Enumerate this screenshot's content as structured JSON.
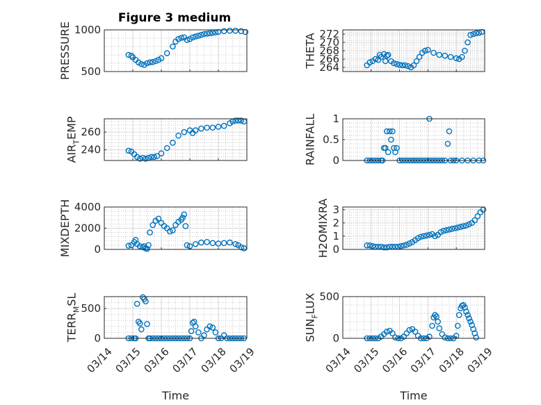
{
  "title": "Figure 3 medium",
  "colors": {
    "marker": "#0072BD",
    "axis": "#262626",
    "grid": "#b0b0b0"
  },
  "x_ticks": [
    "03/14",
    "03/15",
    "03/16",
    "03/17",
    "03/18",
    "03/19"
  ],
  "x_label": "Time",
  "chart_data": [
    {
      "type": "scatter",
      "ylabel": "PRESSURE",
      "ylim": [
        500,
        1000
      ],
      "yticks": [
        "500",
        "1000"
      ],
      "ytick_values": [
        500,
        1000
      ],
      "x": [
        0.85,
        0.95,
        1.0,
        1.1,
        1.2,
        1.3,
        1.4,
        1.5,
        1.6,
        1.7,
        1.8,
        1.9,
        2.0,
        2.2,
        2.4,
        2.5,
        2.6,
        2.7,
        2.8,
        2.9,
        3.0,
        3.1,
        3.2,
        3.3,
        3.4,
        3.5,
        3.6,
        3.7,
        3.8,
        3.9,
        4.0,
        4.2,
        4.4,
        4.6,
        4.8,
        4.95
      ],
      "y": [
        700,
        690,
        670,
        640,
        610,
        590,
        580,
        600,
        610,
        615,
        625,
        640,
        660,
        720,
        800,
        860,
        890,
        905,
        910,
        880,
        890,
        910,
        920,
        930,
        940,
        950,
        955,
        960,
        965,
        970,
        975,
        985,
        990,
        990,
        985,
        975
      ]
    },
    {
      "type": "scatter",
      "ylabel": "THETA",
      "ylim": [
        263,
        273
      ],
      "yticks": [
        "264",
        "266",
        "268",
        "270",
        "272"
      ],
      "ytick_values": [
        264,
        266,
        268,
        270,
        272
      ],
      "x": [
        0.85,
        0.95,
        1.05,
        1.15,
        1.25,
        1.3,
        1.35,
        1.45,
        1.5,
        1.55,
        1.6,
        1.7,
        1.8,
        1.9,
        2.0,
        2.1,
        2.2,
        2.3,
        2.4,
        2.5,
        2.6,
        2.7,
        2.8,
        2.9,
        3.0,
        3.2,
        3.4,
        3.6,
        3.8,
        4.0,
        4.1,
        4.2,
        4.3,
        4.4,
        4.5,
        4.6,
        4.7,
        4.8,
        4.9
      ],
      "y": [
        264.5,
        265.2,
        265.5,
        266,
        265.8,
        267,
        266.5,
        267.2,
        265.5,
        266.8,
        267,
        265.5,
        265,
        264.8,
        264.6,
        264.5,
        264.5,
        264.3,
        264,
        264.5,
        265.5,
        266.5,
        267.5,
        268,
        268.2,
        267.5,
        267,
        266.8,
        266.5,
        266.2,
        266,
        266.5,
        268,
        270,
        271.8,
        272,
        272.2,
        272.3,
        272.5
      ]
    },
    {
      "type": "scatter",
      "ylabel": "AIR_TEMP",
      "ylim": [
        228,
        275
      ],
      "yticks": [
        "240",
        "260"
      ],
      "ytick_values": [
        240,
        260
      ],
      "x": [
        0.85,
        0.95,
        1.05,
        1.15,
        1.25,
        1.35,
        1.45,
        1.55,
        1.65,
        1.75,
        1.85,
        2.0,
        2.2,
        2.4,
        2.6,
        2.8,
        3.0,
        3.1,
        3.2,
        3.4,
        3.6,
        3.8,
        4.0,
        4.2,
        4.4,
        4.5,
        4.6,
        4.7,
        4.8,
        4.9
      ],
      "y": [
        239,
        238,
        235,
        232,
        230,
        231,
        230,
        231,
        232,
        232,
        233,
        236,
        242,
        248,
        256,
        260,
        262,
        259,
        262,
        264,
        265,
        265,
        266,
        267,
        270,
        272,
        273,
        273,
        273,
        272
      ]
    },
    {
      "type": "scatter",
      "ylabel": "RAINFALL",
      "ylim": [
        0,
        1
      ],
      "yticks": [
        "0",
        "0.5",
        "1"
      ],
      "ytick_values": [
        0,
        0.5,
        1
      ],
      "x": [
        0.85,
        0.95,
        1.05,
        1.15,
        1.25,
        1.35,
        1.4,
        1.45,
        1.5,
        1.55,
        1.6,
        1.65,
        1.7,
        1.75,
        1.8,
        1.85,
        1.9,
        2.0,
        2.1,
        2.2,
        2.3,
        2.4,
        2.5,
        2.6,
        2.7,
        2.8,
        2.9,
        3.0,
        3.05,
        3.1,
        3.2,
        3.3,
        3.4,
        3.5,
        3.6,
        3.7,
        3.75,
        3.8,
        3.9,
        4.0,
        4.2,
        4.4,
        4.6,
        4.8,
        4.95
      ],
      "y": [
        0,
        0,
        0,
        0,
        0,
        0,
        0,
        0.3,
        0.3,
        0.7,
        0.2,
        0.7,
        0.5,
        0.7,
        0.3,
        0.2,
        0.3,
        0,
        0,
        0,
        0,
        0,
        0,
        0,
        0,
        0,
        0,
        0,
        1,
        0,
        0,
        0,
        0,
        0,
        0,
        0.4,
        0.7,
        0,
        0,
        0,
        0,
        0,
        0,
        0,
        0
      ]
    },
    {
      "type": "scatter",
      "ylabel": "MIXDEPTH",
      "ylim": [
        0,
        4000
      ],
      "yticks": [
        "0",
        "2000",
        "4000"
      ],
      "ytick_values": [
        0,
        2000,
        4000
      ],
      "x": [
        0.85,
        0.95,
        1.05,
        1.1,
        1.15,
        1.25,
        1.35,
        1.4,
        1.45,
        1.5,
        1.55,
        1.6,
        1.7,
        1.8,
        1.9,
        2.0,
        2.1,
        2.2,
        2.3,
        2.4,
        2.5,
        2.6,
        2.7,
        2.75,
        2.8,
        2.85,
        2.9,
        3.0,
        3.2,
        3.4,
        3.6,
        3.8,
        4.0,
        4.2,
        4.4,
        4.6,
        4.7,
        4.8,
        4.9
      ],
      "y": [
        350,
        400,
        700,
        900,
        500,
        300,
        200,
        300,
        100,
        50,
        400,
        1600,
        2300,
        2700,
        2900,
        2500,
        2200,
        2000,
        1700,
        1800,
        2300,
        2600,
        2800,
        3000,
        3300,
        2200,
        400,
        300,
        500,
        650,
        700,
        600,
        550,
        600,
        650,
        500,
        400,
        200,
        100
      ]
    },
    {
      "type": "scatter",
      "ylabel": "H2OMIXRA",
      "ylim": [
        0,
        3.2
      ],
      "yticks": [
        "0",
        "1",
        "2",
        "3"
      ],
      "ytick_values": [
        0,
        1,
        2,
        3
      ],
      "x": [
        0.85,
        0.95,
        1.05,
        1.15,
        1.25,
        1.35,
        1.45,
        1.55,
        1.65,
        1.75,
        1.85,
        1.95,
        2.05,
        2.15,
        2.25,
        2.35,
        2.45,
        2.55,
        2.65,
        2.75,
        2.85,
        2.95,
        3.05,
        3.15,
        3.25,
        3.35,
        3.45,
        3.55,
        3.65,
        3.75,
        3.85,
        3.95,
        4.05,
        4.15,
        4.25,
        4.35,
        4.45,
        4.55,
        4.65,
        4.75,
        4.85,
        4.95
      ],
      "y": [
        0.3,
        0.3,
        0.25,
        0.2,
        0.2,
        0.2,
        0.15,
        0.15,
        0.2,
        0.2,
        0.2,
        0.2,
        0.25,
        0.3,
        0.35,
        0.45,
        0.55,
        0.7,
        0.85,
        0.95,
        1.0,
        1.05,
        1.1,
        1.15,
        1.0,
        1.1,
        1.3,
        1.4,
        1.45,
        1.5,
        1.55,
        1.6,
        1.65,
        1.7,
        1.75,
        1.8,
        1.9,
        2.0,
        2.2,
        2.5,
        2.8,
        3.0
      ]
    },
    {
      "type": "scatter",
      "ylabel": "TERR_MSL",
      "ylim": [
        0,
        700
      ],
      "yticks": [
        "0",
        "500"
      ],
      "ytick_values": [
        0,
        500
      ],
      "x": [
        0.85,
        0.95,
        1.05,
        1.1,
        1.15,
        1.2,
        1.25,
        1.3,
        1.35,
        1.4,
        1.45,
        1.5,
        1.55,
        1.6,
        1.7,
        1.8,
        1.9,
        2.0,
        2.1,
        2.2,
        2.3,
        2.4,
        2.5,
        2.6,
        2.7,
        2.8,
        2.9,
        3.0,
        3.05,
        3.1,
        3.15,
        3.2,
        3.3,
        3.4,
        3.5,
        3.6,
        3.7,
        3.8,
        3.9,
        4.0,
        4.1,
        4.2,
        4.3,
        4.4,
        4.5,
        4.6,
        4.7,
        4.8,
        4.9
      ],
      "y": [
        0,
        0,
        0,
        0,
        580,
        280,
        250,
        150,
        690,
        660,
        620,
        240,
        0,
        0,
        0,
        0,
        0,
        0,
        0,
        0,
        0,
        0,
        0,
        0,
        0,
        0,
        0,
        0,
        120,
        260,
        280,
        200,
        100,
        0,
        50,
        150,
        200,
        180,
        100,
        0,
        0,
        50,
        0,
        0,
        0,
        0,
        0,
        0,
        0
      ]
    },
    {
      "type": "scatter",
      "ylabel": "SUN_FLUX",
      "ylim": [
        0,
        500
      ],
      "yticks": [
        "0",
        "500"
      ],
      "ytick_values": [
        0,
        500
      ],
      "x": [
        0.85,
        0.95,
        1.05,
        1.15,
        1.25,
        1.35,
        1.45,
        1.55,
        1.65,
        1.75,
        1.85,
        1.95,
        2.05,
        2.15,
        2.25,
        2.35,
        2.45,
        2.55,
        2.65,
        2.75,
        2.85,
        2.95,
        3.05,
        3.15,
        3.2,
        3.25,
        3.3,
        3.35,
        3.4,
        3.5,
        3.6,
        3.7,
        3.8,
        3.9,
        4.0,
        4.05,
        4.1,
        4.15,
        4.2,
        4.25,
        4.3,
        4.35,
        4.4,
        4.45,
        4.5,
        4.55,
        4.6,
        4.65,
        4.7
      ],
      "y": [
        0,
        0,
        0,
        0,
        0,
        20,
        50,
        80,
        90,
        60,
        10,
        0,
        0,
        20,
        60,
        100,
        110,
        80,
        30,
        0,
        0,
        0,
        20,
        150,
        250,
        280,
        260,
        200,
        120,
        50,
        10,
        0,
        0,
        0,
        30,
        150,
        280,
        360,
        390,
        400,
        370,
        320,
        280,
        240,
        200,
        160,
        110,
        60,
        10
      ]
    }
  ]
}
